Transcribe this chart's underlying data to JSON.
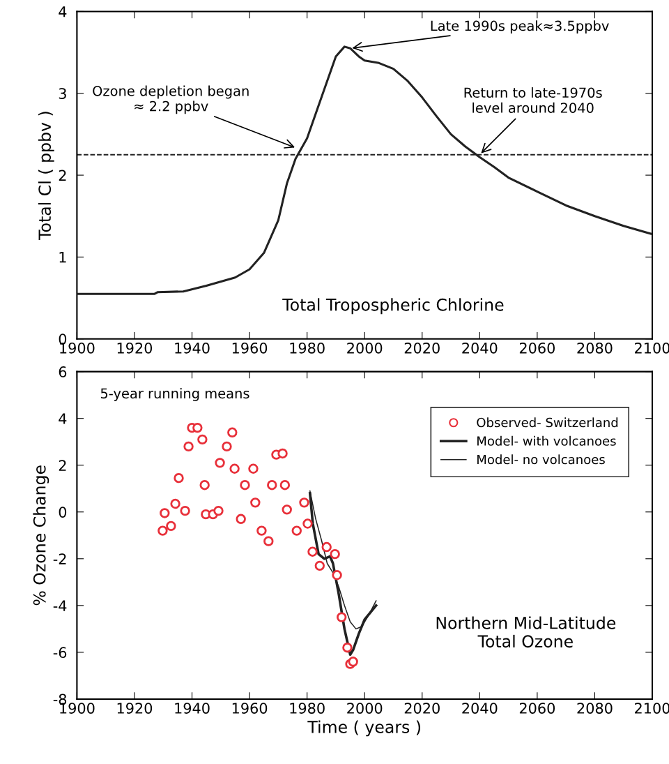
{
  "chart_data": [
    {
      "type": "line",
      "ylabel": "Total Cl ( ppbv )",
      "xlim": [
        1900,
        2100
      ],
      "xticks": [
        1900,
        1920,
        1940,
        1960,
        1980,
        2000,
        2020,
        2040,
        2060,
        2080,
        2100
      ],
      "ylim": [
        0,
        4
      ],
      "yticks": [
        0,
        1,
        2,
        3,
        4
      ],
      "grid": false,
      "legend": false,
      "marker": "none",
      "line_style": "solid",
      "series": [
        {
          "color": "#222222",
          "x": [
            1900,
            1927,
            1928,
            1937,
            1945,
            1955,
            1960,
            1965,
            1970,
            1973,
            1976,
            1980,
            1985,
            1990,
            1993,
            1995,
            1998,
            2000,
            2005,
            2010,
            2015,
            2020,
            2025,
            2030,
            2035,
            2040,
            2045,
            2050,
            2060,
            2070,
            2080,
            2090,
            2100
          ],
          "values": [
            0.55,
            0.55,
            0.57,
            0.58,
            0.65,
            0.75,
            0.85,
            1.05,
            1.45,
            1.9,
            2.2,
            2.45,
            2.95,
            3.45,
            3.57,
            3.55,
            3.45,
            3.4,
            3.37,
            3.3,
            3.15,
            2.95,
            2.72,
            2.5,
            2.35,
            2.22,
            2.1,
            1.97,
            1.8,
            1.63,
            1.5,
            1.38,
            1.28
          ]
        }
      ],
      "ref_lines": [
        {
          "axis": "y",
          "value": 2.25,
          "color": "#222222",
          "line_style": "dashed"
        }
      ],
      "annotations": [
        {
          "text": "Ozone depletion began\n≈ 2.2 ppbv",
          "x": 1976.4,
          "y": 2.33
        },
        {
          "text": "Late 1990s peak≈3.5ppbv",
          "x": 1995,
          "y": 3.55
        },
        {
          "text": "Return to late-1970s\nlevel around 2040",
          "x": 2040,
          "y": 2.25
        },
        "Total Tropospheric Chlorine"
      ]
    },
    {
      "type": "scatter",
      "xlabel": "Time ( years )",
      "ylabel": "% Ozone Change",
      "xlim": [
        1900,
        2100
      ],
      "xticks": [
        1900,
        1920,
        1940,
        1960,
        1980,
        2000,
        2020,
        2040,
        2060,
        2080,
        2100
      ],
      "ylim": [
        -8,
        6
      ],
      "yticks": [
        -8,
        -6,
        -4,
        -2,
        0,
        2,
        4,
        6
      ],
      "grid": false,
      "legend": "top right",
      "marker": "circle",
      "series": [
        {
          "name": "Observed- Switzerland",
          "type": "scatter",
          "color": "#e8303a",
          "x": [
            1929.8,
            1930.5,
            1932.7,
            1934.2,
            1935.4,
            1937.6,
            1938.8,
            1940,
            1941.9,
            1943.6,
            1944.4,
            1944.8,
            1947.3,
            1949.2,
            1949.7,
            1952.1,
            1954,
            1954.8,
            1957,
            1958.4,
            1961.3,
            1962,
            1964.2,
            1966.6,
            1967.8,
            1969.3,
            1971.5,
            1972.3,
            1973,
            1976.4,
            1979,
            1980.2,
            1981.9,
            1984.4,
            1986.8,
            1989.7,
            1990.4,
            1992,
            1994,
            1995,
            1996
          ],
          "values": [
            -0.8,
            -0.05,
            -0.6,
            0.35,
            1.45,
            0.05,
            2.8,
            3.6,
            3.6,
            3.1,
            1.15,
            -0.1,
            -0.1,
            0.05,
            2.1,
            2.8,
            3.4,
            1.85,
            -0.3,
            1.15,
            1.85,
            0.4,
            -0.8,
            -1.25,
            1.15,
            2.45,
            2.5,
            1.15,
            0.1,
            -0.8,
            0.4,
            -0.5,
            -1.7,
            -2.3,
            -1.5,
            -1.8,
            -2.7,
            -4.5,
            -5.8,
            -6.5,
            -6.4
          ]
        },
        {
          "name": "Model- with volcanoes",
          "type": "line",
          "color": "#222222",
          "line_style": "solid",
          "marker": "none",
          "x": [
            1981,
            1982,
            1984,
            1986,
            1988,
            1989,
            1991,
            1993,
            1995,
            1996,
            1998,
            2000,
            2002,
            2004
          ],
          "values": [
            0.8,
            -0.5,
            -1.8,
            -2.0,
            -1.9,
            -2.2,
            -3.5,
            -5.0,
            -6.1,
            -5.9,
            -5.2,
            -4.6,
            -4.3,
            -4.0
          ]
        },
        {
          "name": "Model- no volcanoes",
          "type": "line",
          "color": "#222222",
          "line_style": "solid",
          "marker": "none",
          "x": [
            1981,
            1983,
            1985,
            1987,
            1989,
            1991,
            1993,
            1995,
            1997,
            1999,
            2001,
            2004
          ],
          "values": [
            0.9,
            -0.3,
            -1.2,
            -2.2,
            -2.6,
            -3.2,
            -4.0,
            -4.7,
            -5.0,
            -4.9,
            -4.5,
            -3.8
          ]
        }
      ],
      "annotations": [
        "5-year running means",
        "Northern Mid-Latitude\nTotal Ozone"
      ]
    }
  ]
}
